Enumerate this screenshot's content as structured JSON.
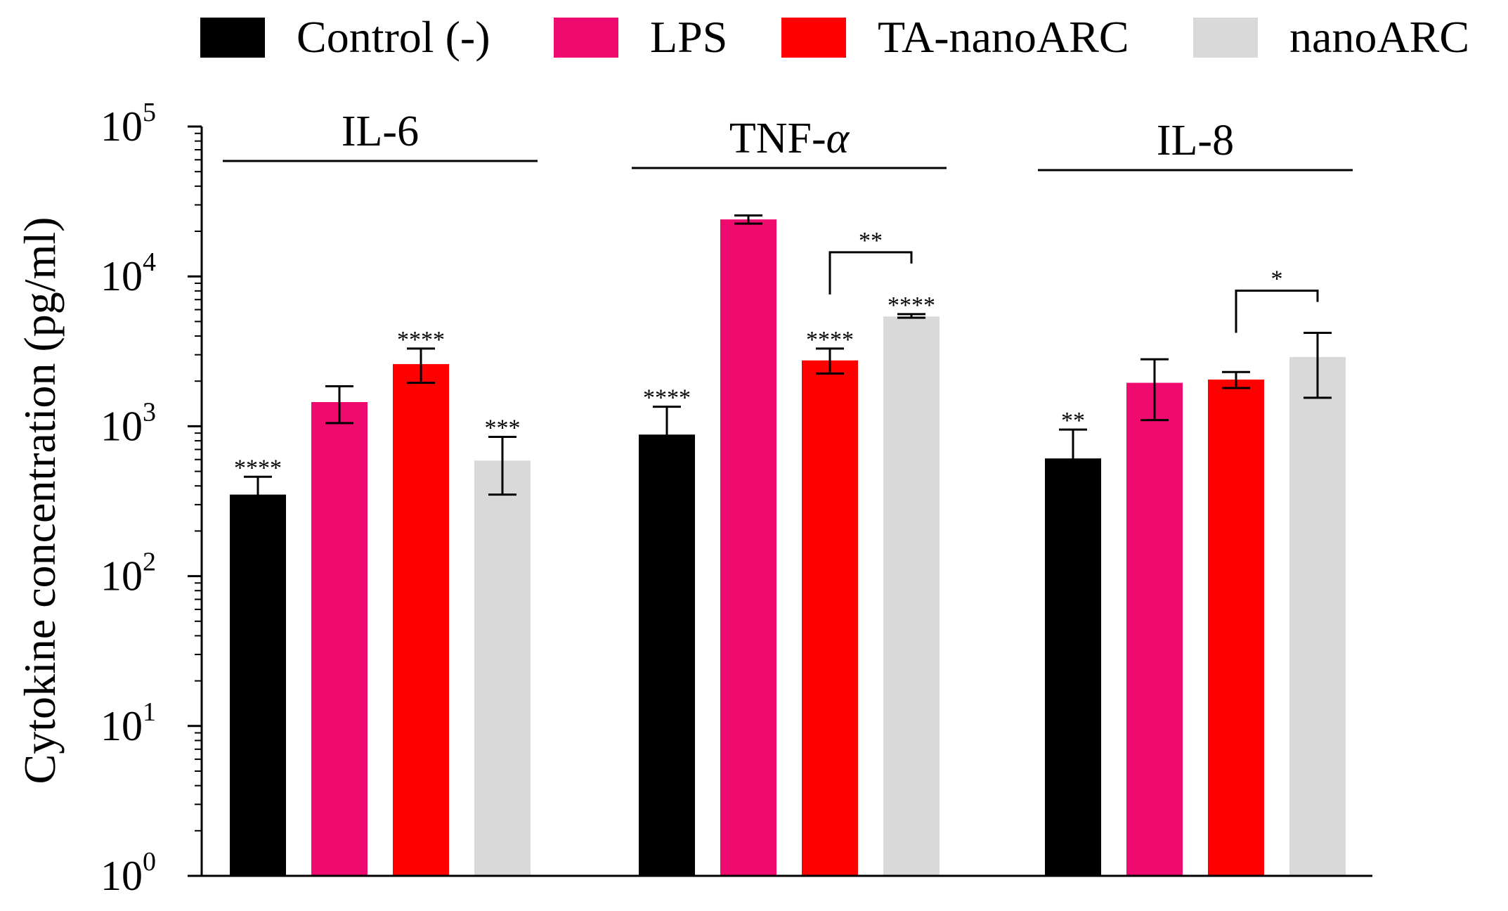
{
  "chart_data": {
    "type": "bar",
    "scale": "log",
    "ylabel": "Cytokine concentration  (pg/ml)",
    "ylim": [
      1,
      100000
    ],
    "yticks": [
      {
        "value": 1,
        "base": "10",
        "exp": "0"
      },
      {
        "value": 10,
        "base": "10",
        "exp": "1"
      },
      {
        "value": 100,
        "base": "10",
        "exp": "2"
      },
      {
        "value": 1000,
        "base": "10",
        "exp": "3"
      },
      {
        "value": 10000,
        "base": "10",
        "exp": "4"
      },
      {
        "value": 100000,
        "base": "10",
        "exp": "5"
      }
    ],
    "series": [
      {
        "name": "Control (-)",
        "color": "#000000"
      },
      {
        "name": "LPS",
        "color": "#ee0a6e"
      },
      {
        "name": "TA-nanoARC",
        "color": "#ff0000"
      },
      {
        "name": "nanoARC",
        "color": "#d9d9d9"
      }
    ],
    "groups": [
      {
        "name": "IL-6",
        "name_main": "IL-6",
        "name_italic": "",
        "values": [
          350,
          1450,
          2600,
          590
        ],
        "err_low": [
          260,
          1050,
          1950,
          350
        ],
        "err_high": [
          460,
          1850,
          3300,
          850
        ],
        "sig": [
          "****",
          "",
          "****",
          "***"
        ],
        "brackets": []
      },
      {
        "name": "TNF-α",
        "name_main": "TNF-",
        "name_italic": "α",
        "values": [
          880,
          24000,
          2750,
          5400
        ],
        "err_low": [
          640,
          22500,
          2250,
          5300
        ],
        "err_high": [
          1350,
          25500,
          3300,
          5600
        ],
        "sig": [
          "****",
          "",
          "****",
          "****"
        ],
        "brackets": [
          {
            "from": 2,
            "to": 3,
            "label": "**"
          }
        ]
      },
      {
        "name": "IL-8",
        "name_main": "IL-8",
        "name_italic": "",
        "values": [
          610,
          1950,
          2050,
          2900
        ],
        "err_low": [
          380,
          1100,
          1800,
          1550
        ],
        "err_high": [
          950,
          2800,
          2300,
          4200
        ],
        "sig": [
          "**",
          "",
          "",
          ""
        ],
        "brackets": [
          {
            "from": 2,
            "to": 3,
            "label": "*"
          }
        ]
      }
    ]
  }
}
